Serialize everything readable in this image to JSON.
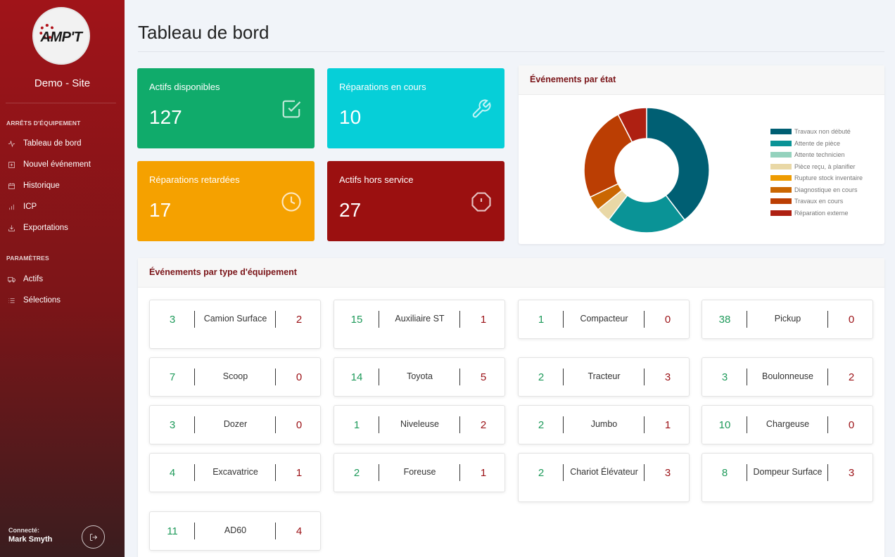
{
  "sidebar": {
    "logo_text": "AMP'T",
    "site_name": "Demo - Site",
    "sections": [
      {
        "title": "ARRÊTS D'ÉQUIPEMENT",
        "items": [
          {
            "label": "Tableau de bord",
            "icon": "activity-icon"
          },
          {
            "label": "Nouvel événement",
            "icon": "plus-square-icon"
          },
          {
            "label": "Historique",
            "icon": "calendar-icon"
          },
          {
            "label": "ICP",
            "icon": "bar-chart-icon"
          },
          {
            "label": "Exportations",
            "icon": "download-icon"
          }
        ]
      },
      {
        "title": "PARAMÈTRES",
        "items": [
          {
            "label": "Actifs",
            "icon": "truck-icon"
          },
          {
            "label": "Sélections",
            "icon": "list-icon"
          }
        ]
      }
    ],
    "connected_label": "Connecté:",
    "user_name": "Mark Smyth"
  },
  "page": {
    "title": "Tableau de bord"
  },
  "stats": [
    {
      "label": "Actifs disponibles",
      "value": "127",
      "color": "#10ab6b",
      "icon": "check-square-icon"
    },
    {
      "label": "Réparations en cours",
      "value": "10",
      "color": "#06cfd8",
      "icon": "wrench-icon"
    },
    {
      "label": "Réparations retardées",
      "value": "17",
      "color": "#f5a100",
      "icon": "clock-icon"
    },
    {
      "label": "Actifs hors service",
      "value": "27",
      "color": "#9b1010",
      "icon": "alert-octagon-icon"
    }
  ],
  "events_by_state": {
    "title": "Événements par état",
    "chart_data": {
      "type": "pie",
      "categories": [
        "Travaux non débuté",
        "Attente de pièce",
        "Attente technicien",
        "Pièce reçu, à planifier",
        "Rupture stock inventaire",
        "Diagnostique en cours",
        "Travaux en cours",
        "Réparation externe"
      ],
      "values": [
        21,
        11,
        0,
        2,
        0,
        2,
        13,
        4
      ],
      "colors": [
        "#005f73",
        "#0a9396",
        "#94d2bd",
        "#e9d8a6",
        "#ee9b00",
        "#ca6702",
        "#bb3e03",
        "#ae2012"
      ],
      "legend_position": "right"
    }
  },
  "events_by_type": {
    "title": "Événements par type d'équipement",
    "items": [
      {
        "left": "3",
        "name": "Camion Surface",
        "right": "2"
      },
      {
        "left": "15",
        "name": "Auxiliaire ST",
        "right": "1"
      },
      {
        "left": "1",
        "name": "Compacteur",
        "right": "0"
      },
      {
        "left": "38",
        "name": "Pickup",
        "right": "0"
      },
      {
        "left": "7",
        "name": "Scoop",
        "right": "0"
      },
      {
        "left": "14",
        "name": "Toyota",
        "right": "5"
      },
      {
        "left": "2",
        "name": "Tracteur",
        "right": "3"
      },
      {
        "left": "3",
        "name": "Boulonneuse",
        "right": "2"
      },
      {
        "left": "3",
        "name": "Dozer",
        "right": "0"
      },
      {
        "left": "1",
        "name": "Niveleuse",
        "right": "2"
      },
      {
        "left": "2",
        "name": "Jumbo",
        "right": "1"
      },
      {
        "left": "10",
        "name": "Chargeuse",
        "right": "0"
      },
      {
        "left": "4",
        "name": "Excavatrice",
        "right": "1"
      },
      {
        "left": "2",
        "name": "Foreuse",
        "right": "1"
      },
      {
        "left": "2",
        "name": "Chariot Élévateur",
        "right": "3"
      },
      {
        "left": "8",
        "name": "Dompeur Surface",
        "right": "3"
      },
      {
        "left": "11",
        "name": "AD60",
        "right": "4"
      }
    ]
  }
}
